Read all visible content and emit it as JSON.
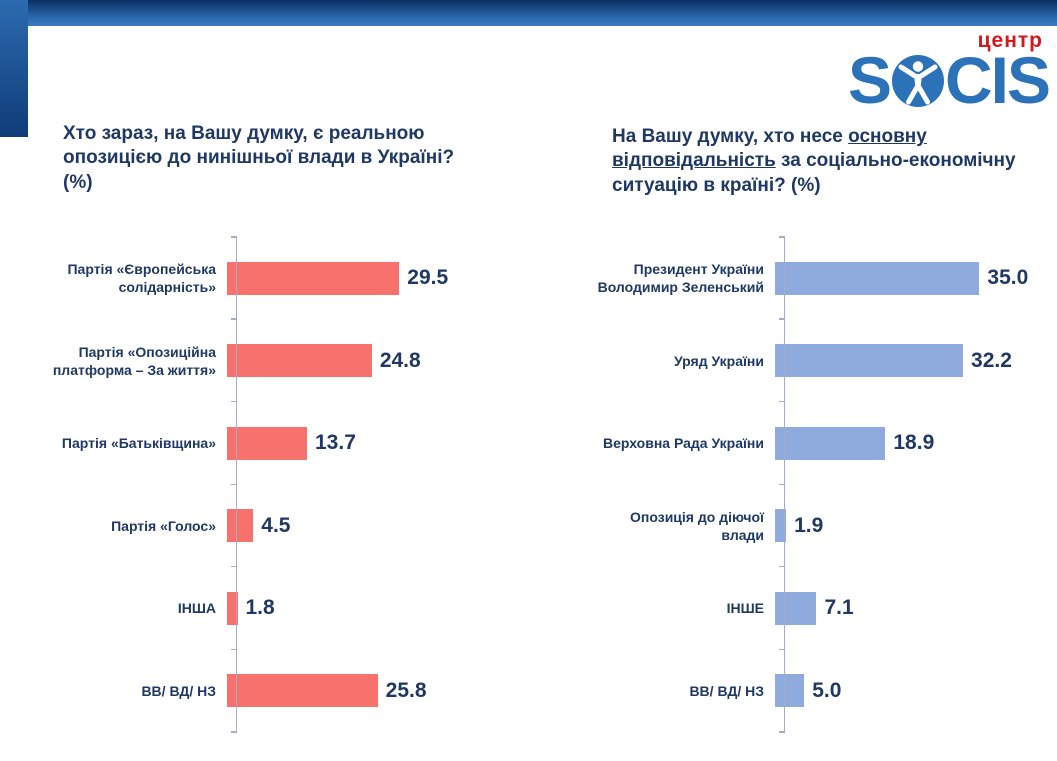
{
  "logo": {
    "center_label": "центр",
    "text_start": "S",
    "text_end": "CIS",
    "blue": "#2b72b8",
    "red": "#d6181e"
  },
  "colors": {
    "title_text": "#1f3864",
    "axis_line": "#a5abcb",
    "left_bars": "#f7726c",
    "right_bars": "#8faadc"
  },
  "chart_data": [
    {
      "type": "bar",
      "orientation": "horizontal",
      "title": "Хто зараз, на Вашу думку, є реальною опозицією до нинішньої влади в Україні? (%)",
      "categories": [
        "Партія «Європейська солідарність»",
        "Партія «Опозиційна платформа – За життя»",
        "Партія «Батьківщина»",
        "Партія «Голос»",
        "ІНША",
        "ВВ/ ВД/ НЗ"
      ],
      "values": [
        29.5,
        24.8,
        13.7,
        4.5,
        1.8,
        25.8
      ],
      "value_labels": [
        "29.5",
        "24.8",
        "13.7",
        "4.5",
        "1.8",
        "25.8"
      ],
      "bar_color": "#f7726c",
      "xlim": [
        0,
        48
      ],
      "grid": false,
      "legend": false,
      "data_labels": "outside-end"
    },
    {
      "type": "bar",
      "orientation": "horizontal",
      "title": "На Вашу думку, хто несе основну відповідальність за соціально-економічну ситуацію в країні? (%)",
      "title_parts": {
        "prefix": "На Вашу думку, хто несе ",
        "underlined": "основну відповідальність",
        "suffix": " за соціально-економічну ситуацію в країні? (%)"
      },
      "categories": [
        "Президент України Володимир Зеленський",
        "Уряд України",
        "Верховна Рада України",
        "Опозиція до діючої влади",
        "ІНШЕ",
        "ВВ/ ВД/ НЗ"
      ],
      "values": [
        35.0,
        32.2,
        18.9,
        1.9,
        7.1,
        5.0
      ],
      "value_labels": [
        "35.0",
        "32.2",
        "18.9",
        "1.9",
        "7.1",
        "5.0"
      ],
      "bar_color": "#8faadc",
      "xlim": [
        0,
        48
      ],
      "grid": false,
      "legend": false,
      "data_labels": "outside-end"
    }
  ]
}
